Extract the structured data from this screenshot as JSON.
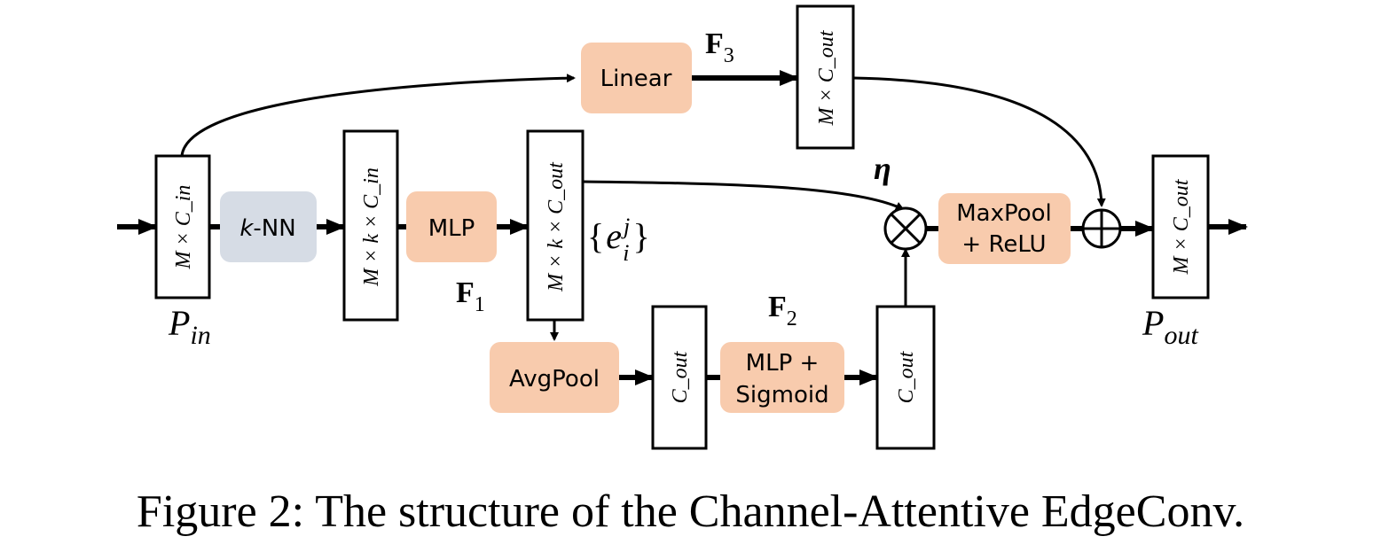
{
  "diagram": {
    "colors": {
      "orange_block": "#F8CBAD",
      "gray_block": "#D6DCE5",
      "stroke": "#000000"
    },
    "blocks": {
      "knn": {
        "text": "-NN",
        "italic_prefix": "k"
      },
      "mlp": "MLP",
      "linear": "Linear",
      "avgpool": "AvgPool",
      "mlp_sigmoid": [
        "MLP +",
        "Sigmoid"
      ],
      "maxpool_relu": [
        "MaxPool",
        "+ ReLU"
      ]
    },
    "tensors": {
      "p_in_shape": "M × C_in",
      "knn_out_shape": "M × k × C_in",
      "mlp_out_shape": "M × k × C_out",
      "linear_out_shape": "M × C_out",
      "avgpool_out_shape": "C_out",
      "sigmoid_out_shape": "C_out",
      "p_out_shape": "M × C_out"
    },
    "labels": {
      "p_in": "P_in",
      "p_out": "P_out",
      "f1": "F_1",
      "f2": "F_2",
      "f3": "F_3",
      "eta": "η",
      "edge_set": "{e_i^j}"
    },
    "operators": {
      "multiply": "⊗",
      "add": "⊕"
    }
  },
  "caption": "Figure 2: The structure of the Channel-Attentive EdgeConv."
}
